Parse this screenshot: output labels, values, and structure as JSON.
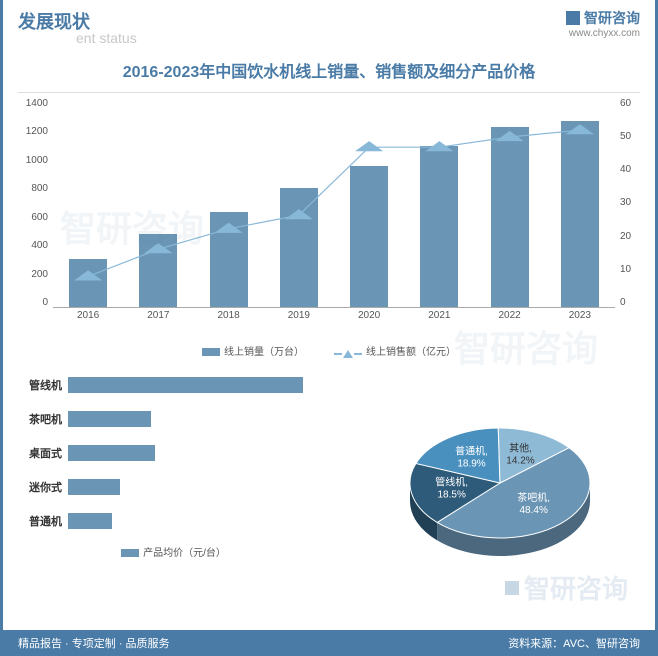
{
  "header": {
    "title_cn": "发展现状",
    "title_en": "ent status",
    "brand": "智研咨询",
    "site": "www.chyxx.com"
  },
  "chart_title": "2016-2023年中国饮水机线上销量、销售额及细分产品价格",
  "combo": {
    "type": "bar_line_dual_axis",
    "categories": [
      "2016",
      "2017",
      "2018",
      "2019",
      "2020",
      "2021",
      "2022",
      "2023"
    ],
    "bar_values": [
      330,
      500,
      650,
      810,
      960,
      1100,
      1230,
      1270
    ],
    "line_values": [
      9,
      17,
      23,
      27,
      47,
      47,
      50,
      52
    ],
    "y_left": {
      "min": 0,
      "max": 1400,
      "step": 200
    },
    "y_right": {
      "min": 0,
      "max": 60,
      "step": 10
    },
    "bar_color": "#6b95b5",
    "line_color": "#88b8d8",
    "marker": "triangle",
    "legend_bar": "线上销量（万台）",
    "legend_line": "线上销售额（亿元）",
    "font_size_axis": 10
  },
  "hbar": {
    "type": "horizontal_bar",
    "categories": [
      "管线机",
      "茶吧机",
      "桌面式",
      "迷你式",
      "普通机"
    ],
    "values": [
      270,
      95,
      100,
      60,
      50
    ],
    "max": 300,
    "bar_color": "#6b95b5",
    "legend": "产品均价（元/台）"
  },
  "pie": {
    "type": "pie_3d",
    "slices": [
      {
        "label": "茶吧机",
        "value": 48.4,
        "color": "#6b95b5"
      },
      {
        "label": "管线机",
        "value": 18.5,
        "color": "#2f5b7a"
      },
      {
        "label": "普通机",
        "value": 18.9,
        "color": "#4a90bf"
      },
      {
        "label": "其他",
        "value": 14.2,
        "color": "#8fbad6"
      }
    ]
  },
  "footer": {
    "left": "精品报告 · 专项定制 · 品质服务",
    "right": "资料来源：AVC、智研咨询"
  },
  "watermark": "智研咨询"
}
